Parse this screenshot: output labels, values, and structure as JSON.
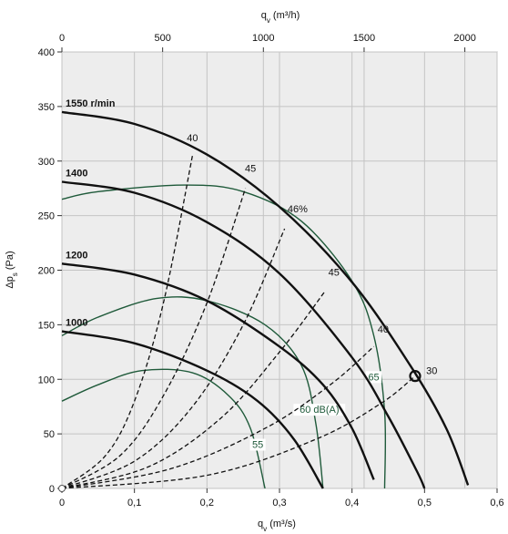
{
  "chart_data": {
    "type": "line",
    "x_top_label": "q",
    "x_top_label_sub": "v",
    "x_top_unit": " (m³/h)",
    "x_top_ticks": [
      "0",
      "500",
      "1000",
      "1500",
      "2000"
    ],
    "x_top_tick_values": [
      0,
      500,
      1000,
      1500,
      2000
    ],
    "x_bottom_label": "q",
    "x_bottom_label_sub": "v",
    "x_bottom_unit": " (m³/s)",
    "x_bottom_ticks": [
      "0",
      "0,1",
      "0,2",
      "0,3",
      "0,4",
      "0,5",
      "0,6"
    ],
    "x_bottom_tick_values": [
      0,
      0.1,
      0.2,
      0.3,
      0.4,
      0.5,
      0.6
    ],
    "y_label": "Δp",
    "y_label_sub": "s",
    "y_unit": " (Pa)",
    "y_ticks": [
      "0",
      "50",
      "100",
      "150",
      "200",
      "250",
      "300",
      "350",
      "400"
    ],
    "y_tick_values": [
      0,
      50,
      100,
      150,
      200,
      250,
      300,
      350,
      400
    ],
    "xlim": [
      0,
      0.6
    ],
    "ylim": [
      0,
      400
    ],
    "grid": true,
    "speed_curves": [
      {
        "name": "1550 r/min",
        "points": [
          [
            0,
            345
          ],
          [
            0.1,
            334
          ],
          [
            0.2,
            306
          ],
          [
            0.3,
            258
          ],
          [
            0.4,
            189
          ],
          [
            0.48,
            113
          ],
          [
            0.53,
            55
          ],
          [
            0.56,
            3
          ]
        ]
      },
      {
        "name": "1400",
        "points": [
          [
            0,
            281
          ],
          [
            0.1,
            271
          ],
          [
            0.2,
            244
          ],
          [
            0.3,
            197
          ],
          [
            0.4,
            120
          ],
          [
            0.45,
            66
          ],
          [
            0.49,
            15
          ],
          [
            0.5,
            0
          ]
        ]
      },
      {
        "name": "1200",
        "points": [
          [
            0,
            206
          ],
          [
            0.1,
            196
          ],
          [
            0.2,
            172
          ],
          [
            0.3,
            130
          ],
          [
            0.36,
            95
          ],
          [
            0.4,
            55
          ],
          [
            0.43,
            8
          ]
        ]
      },
      {
        "name": "1000",
        "points": [
          [
            0,
            144
          ],
          [
            0.1,
            133
          ],
          [
            0.2,
            108
          ],
          [
            0.27,
            80
          ],
          [
            0.32,
            45
          ],
          [
            0.36,
            0
          ]
        ]
      }
    ],
    "efficiency_curves": [
      {
        "name": "40",
        "points": [
          [
            0,
            0
          ],
          [
            0.06,
            30
          ],
          [
            0.1,
            80
          ],
          [
            0.14,
            170
          ],
          [
            0.18,
            305
          ]
        ],
        "label_at": [
          0.18,
          318
        ]
      },
      {
        "name": "45",
        "points": [
          [
            0,
            0
          ],
          [
            0.08,
            30
          ],
          [
            0.14,
            85
          ],
          [
            0.2,
            170
          ],
          [
            0.253,
            275
          ]
        ],
        "label_at": [
          0.26,
          290
        ]
      },
      {
        "name": "46%",
        "points": [
          [
            0,
            0
          ],
          [
            0.1,
            25
          ],
          [
            0.18,
            75
          ],
          [
            0.25,
            150
          ],
          [
            0.307,
            238
          ]
        ],
        "label_at": [
          0.325,
          253
        ]
      },
      {
        "name": "45",
        "points": [
          [
            0,
            0
          ],
          [
            0.12,
            20
          ],
          [
            0.22,
            65
          ],
          [
            0.3,
            125
          ],
          [
            0.362,
            180
          ]
        ],
        "label_at": [
          0.375,
          195
        ]
      },
      {
        "name": "40",
        "points": [
          [
            0,
            0
          ],
          [
            0.15,
            18
          ],
          [
            0.28,
            55
          ],
          [
            0.37,
            95
          ],
          [
            0.43,
            130
          ]
        ],
        "label_at": [
          0.443,
          143
        ]
      },
      {
        "name": "30",
        "points": [
          [
            0,
            0
          ],
          [
            0.2,
            12
          ],
          [
            0.35,
            45
          ],
          [
            0.44,
            78
          ],
          [
            0.487,
            103
          ]
        ],
        "label_at": [
          0.51,
          105
        ]
      }
    ],
    "sound_curves": [
      {
        "name": "65",
        "points": [
          [
            0,
            265
          ],
          [
            0.05,
            272
          ],
          [
            0.17,
            278
          ],
          [
            0.25,
            272
          ],
          [
            0.33,
            245
          ],
          [
            0.4,
            190
          ],
          [
            0.43,
            140
          ],
          [
            0.445,
            70
          ],
          [
            0.445,
            0
          ]
        ],
        "label_at": [
          0.43,
          100
        ]
      },
      {
        "name": "60 dB(A)",
        "points": [
          [
            0,
            140
          ],
          [
            0.05,
            157
          ],
          [
            0.13,
            174
          ],
          [
            0.2,
            172
          ],
          [
            0.28,
            150
          ],
          [
            0.33,
            113
          ],
          [
            0.35,
            60
          ],
          [
            0.36,
            0
          ]
        ],
        "label_at": [
          0.355,
          70
        ]
      },
      {
        "name": "55",
        "points": [
          [
            0,
            80
          ],
          [
            0.05,
            95
          ],
          [
            0.11,
            108
          ],
          [
            0.18,
            106
          ],
          [
            0.23,
            85
          ],
          [
            0.26,
            55
          ],
          [
            0.28,
            0
          ]
        ],
        "label_at": [
          0.27,
          38
        ]
      }
    ],
    "marker_point": {
      "x": 0.487,
      "y": 103
    }
  }
}
